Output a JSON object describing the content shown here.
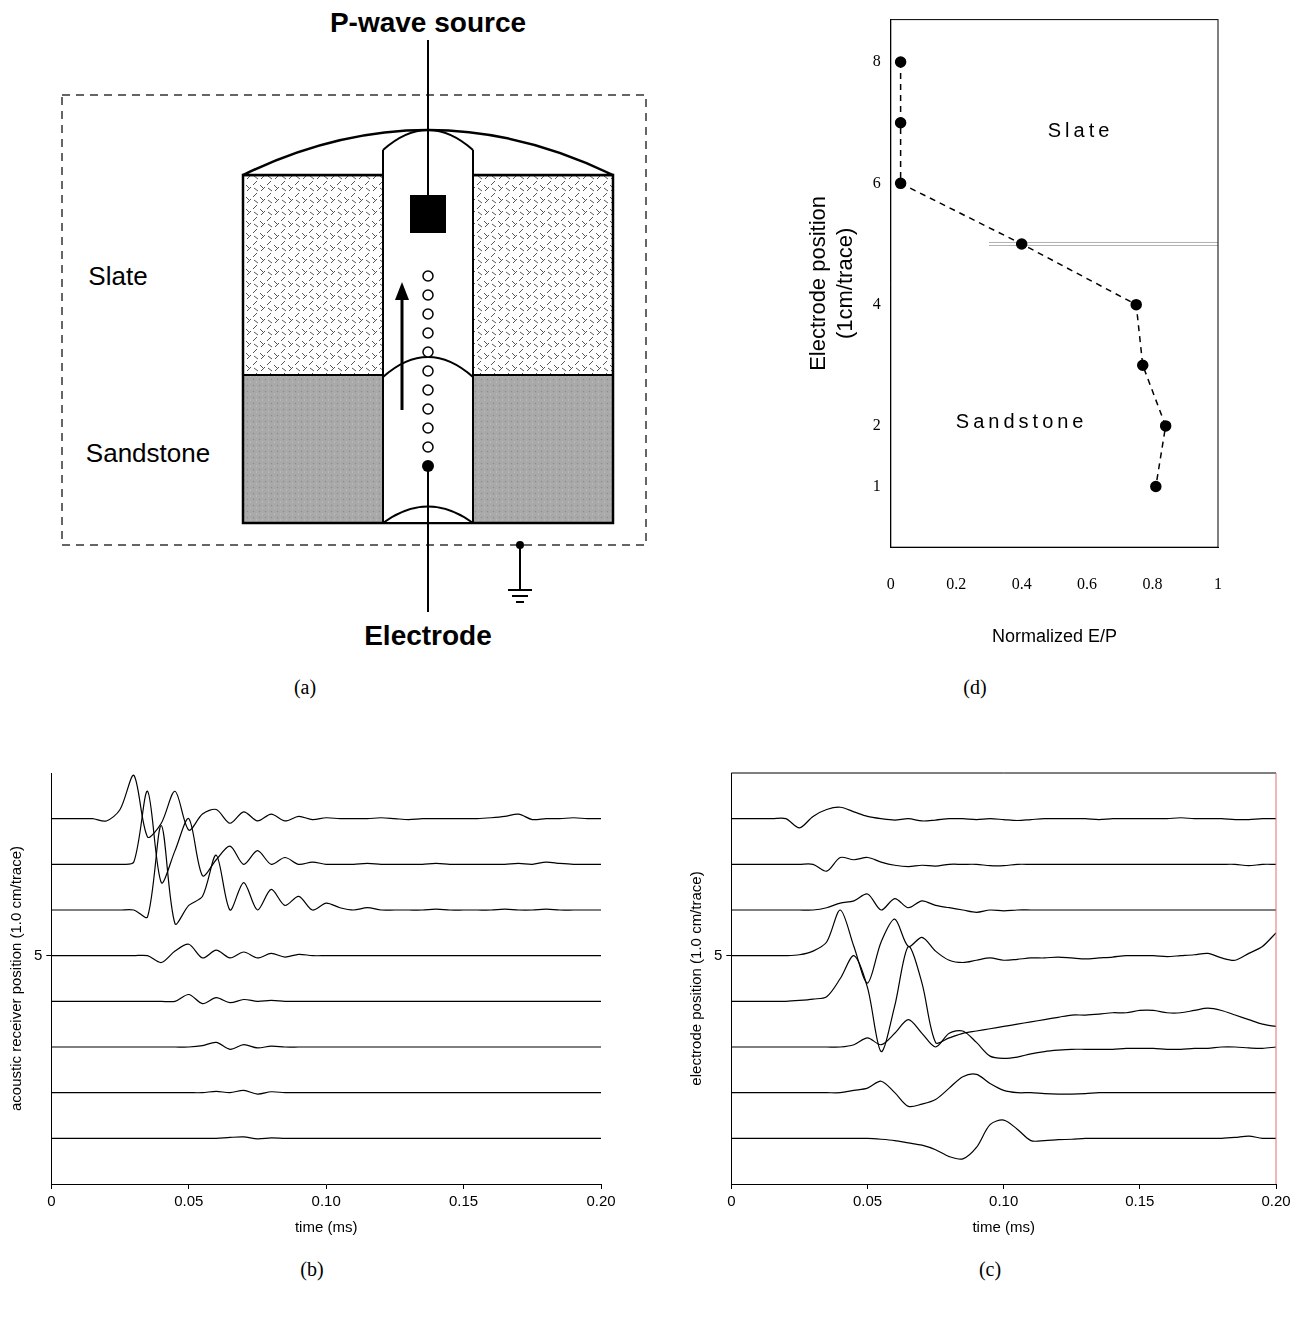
{
  "diagram": {
    "label": "(a)",
    "source": "P-wave source",
    "electrode": "Electrode",
    "layers": [
      "Slate",
      "Sandstone"
    ]
  },
  "chart_data": [
    {
      "label": "(b)",
      "type": "line",
      "color": "#000000",
      "grid": false,
      "x_label": "time (ms)",
      "y_label": "acoustic receiver position (1.0 cm/trace)",
      "xlim": [
        0,
        0.2
      ],
      "ylim": [
        0,
        9
      ],
      "xticks": [
        0,
        0.05,
        {
          "value": 0.1,
          "label": "0.10"
        },
        0.15,
        {
          "value": 0.2,
          "label": "0.20"
        }
      ],
      "yticks": [
        5
      ],
      "x": [
        0,
        0.005,
        0.01,
        0.015,
        0.02,
        0.025,
        0.03,
        0.035,
        0.04,
        0.045,
        0.05,
        0.055,
        0.06,
        0.065,
        0.07,
        0.075,
        0.08,
        0.085,
        0.09,
        0.095,
        0.1,
        0.105,
        0.11,
        0.115,
        0.12,
        0.125,
        0.13,
        0.135,
        0.14,
        0.145,
        0.15,
        0.155,
        0.16,
        0.165,
        0.17,
        0.175,
        0.18,
        0.185,
        0.19,
        0.195,
        0.2
      ],
      "series": [
        {
          "values": [
            8,
            8,
            8,
            8,
            7.95,
            8.2,
            8.95,
            7.6,
            7.9,
            8.6,
            7.75,
            8.1,
            8.2,
            7.9,
            8.15,
            7.95,
            8.1,
            7.95,
            8.05,
            7.98,
            8.02,
            8,
            8,
            8,
            8.02,
            8,
            7.98,
            8,
            8,
            8,
            8,
            8,
            8.02,
            8.05,
            8.1,
            7.98,
            8,
            8,
            8.02,
            8,
            8
          ]
        },
        {
          "values": [
            7,
            7,
            7,
            7,
            7,
            7,
            7.05,
            8.6,
            6.6,
            7.3,
            8,
            6.75,
            7.1,
            7.4,
            7,
            7.3,
            7,
            7.15,
            7,
            7.05,
            7,
            7,
            7,
            7.02,
            7,
            7,
            7,
            7,
            7.02,
            7,
            7,
            7,
            7,
            7,
            7.02,
            7,
            7.05,
            7.02,
            7,
            7,
            7
          ]
        },
        {
          "values": [
            6,
            6,
            6,
            6,
            6,
            6,
            6,
            5.85,
            7.85,
            5.7,
            6.1,
            6.3,
            7.2,
            6,
            6.6,
            6,
            6.45,
            6.1,
            6.3,
            6,
            6.15,
            6.05,
            6,
            6.05,
            6,
            6,
            6,
            6,
            6.02,
            6,
            6,
            6,
            6,
            6.02,
            6,
            6,
            6.02,
            6,
            6,
            6,
            6
          ]
        },
        {
          "values": [
            5,
            5,
            5,
            5,
            5,
            5,
            5,
            5,
            4.85,
            5.1,
            5.25,
            4.95,
            5.12,
            4.95,
            5.08,
            4.95,
            5.05,
            4.97,
            5.03,
            5,
            5,
            5,
            5,
            5,
            5,
            5,
            5,
            5,
            5,
            5,
            5,
            5,
            5,
            5,
            5,
            5,
            5,
            5,
            5,
            5,
            5
          ]
        },
        {
          "values": [
            4,
            4,
            4,
            4,
            4,
            4,
            4,
            4,
            4,
            4,
            4.15,
            3.95,
            4.08,
            3.97,
            4.04,
            4,
            4.02,
            4,
            4,
            4,
            4,
            4,
            4,
            4,
            4,
            4,
            4,
            4,
            4,
            4,
            4,
            4,
            4,
            4,
            4,
            4,
            4,
            4,
            4,
            4,
            4
          ]
        },
        {
          "values": [
            3,
            3,
            3,
            3,
            3,
            3,
            3,
            3,
            3,
            3,
            3,
            3.03,
            3.1,
            2.95,
            3.05,
            2.98,
            3.02,
            3,
            3,
            3,
            3,
            3,
            3,
            3,
            3,
            3,
            3,
            3,
            3,
            3,
            3,
            3,
            3,
            3,
            3,
            3,
            3,
            3,
            3,
            3,
            3
          ]
        },
        {
          "values": [
            2,
            2,
            2,
            2,
            2,
            2,
            2,
            2,
            2,
            2,
            2,
            2,
            2.03,
            2,
            2.05,
            1.97,
            2.02,
            2,
            2,
            2,
            2,
            2,
            2,
            2,
            2,
            2,
            2,
            2,
            2,
            2,
            2,
            2,
            2,
            2,
            2,
            2,
            2,
            2,
            2,
            2,
            2
          ]
        },
        {
          "values": [
            1,
            1,
            1,
            1,
            1,
            1,
            1,
            1,
            1,
            1,
            1,
            1,
            1,
            1.02,
            1.03,
            0.99,
            1.01,
            1,
            1,
            1,
            1,
            1,
            1,
            1,
            1,
            1,
            1,
            1,
            1,
            1,
            1,
            1,
            1,
            1,
            1,
            1,
            1,
            1,
            1,
            1,
            1
          ]
        }
      ]
    },
    {
      "label": "(c)",
      "type": "line",
      "color": "#000000",
      "grid": false,
      "x_label": "time (ms)",
      "y_label": "electrode position (1.0 cm/trace)",
      "xlim": [
        0,
        0.2
      ],
      "ylim": [
        0,
        9
      ],
      "xticks": [
        0,
        0.05,
        {
          "value": 0.1,
          "label": "0.10"
        },
        0.15,
        {
          "value": 0.2,
          "label": "0.20"
        }
      ],
      "yticks": [
        5
      ],
      "x": [
        0,
        0.005,
        0.01,
        0.015,
        0.02,
        0.025,
        0.03,
        0.035,
        0.04,
        0.045,
        0.05,
        0.055,
        0.06,
        0.065,
        0.07,
        0.075,
        0.08,
        0.085,
        0.09,
        0.095,
        0.1,
        0.105,
        0.11,
        0.115,
        0.12,
        0.125,
        0.13,
        0.135,
        0.14,
        0.145,
        0.15,
        0.155,
        0.16,
        0.165,
        0.17,
        0.175,
        0.18,
        0.185,
        0.19,
        0.195,
        0.2
      ],
      "series": [
        {
          "values": [
            8,
            8,
            8,
            8,
            8,
            7.8,
            8.05,
            8.2,
            8.25,
            8.15,
            8.05,
            8,
            7.97,
            8,
            7.95,
            7.97,
            8,
            8,
            7.98,
            8,
            7.98,
            7.96,
            7.98,
            8,
            8,
            8,
            8,
            7.98,
            8,
            8,
            8,
            8,
            8,
            8.02,
            8,
            8,
            8,
            7.98,
            7.98,
            8,
            8
          ]
        },
        {
          "values": [
            7,
            7,
            7,
            7,
            7,
            7,
            7,
            6.85,
            7.15,
            7.1,
            7.15,
            7.05,
            6.98,
            6.95,
            6.98,
            6.96,
            7,
            7,
            7,
            6.97,
            6.97,
            7,
            7,
            7,
            7,
            7,
            7,
            7,
            7,
            7,
            7,
            7,
            7,
            7,
            7,
            7,
            7,
            7,
            6.97,
            7,
            7
          ]
        },
        {
          "values": [
            6,
            6,
            6,
            6,
            6,
            6,
            6,
            6.05,
            6.15,
            6.2,
            6.35,
            6,
            6.25,
            6.05,
            6.2,
            6.1,
            6.05,
            6,
            5.95,
            6,
            5.98,
            6,
            6,
            6,
            6,
            6,
            6,
            6,
            6,
            6,
            6,
            6,
            6,
            6,
            6,
            6,
            6,
            6,
            6,
            6,
            6
          ]
        },
        {
          "values": [
            5,
            5,
            5,
            5,
            5,
            5.02,
            5.1,
            5.3,
            6,
            5.2,
            4.4,
            5.3,
            5.8,
            5.2,
            5.4,
            5.1,
            4.9,
            4.85,
            4.9,
            4.95,
            4.9,
            4.92,
            4.95,
            4.95,
            4.97,
            4.95,
            4.93,
            4.95,
            4.97,
            5,
            5,
            5,
            4.98,
            5,
            5.02,
            5.05,
            4.95,
            4.9,
            5.05,
            5.2,
            5.5
          ]
        },
        {
          "values": [
            4,
            4,
            4,
            4,
            4,
            4.02,
            4.05,
            4.1,
            4.5,
            5,
            4.3,
            2.9,
            3.9,
            5.2,
            4.4,
            3.1,
            3.2,
            3.3,
            3.35,
            3.4,
            3.45,
            3.5,
            3.55,
            3.6,
            3.65,
            3.7,
            3.7,
            3.72,
            3.75,
            3.75,
            3.8,
            3.8,
            3.75,
            3.75,
            3.8,
            3.85,
            3.8,
            3.7,
            3.6,
            3.5,
            3.45
          ]
        },
        {
          "values": [
            3,
            3,
            3,
            3,
            3,
            3,
            3,
            3,
            3,
            3.05,
            3.2,
            3.05,
            3.3,
            3.6,
            3.3,
            3,
            3.3,
            3.35,
            3.1,
            2.8,
            2.75,
            2.78,
            2.85,
            2.9,
            2.93,
            2.95,
            2.95,
            2.95,
            2.95,
            2.97,
            2.97,
            2.97,
            2.95,
            2.95,
            2.97,
            2.97,
            3,
            3,
            2.98,
            2.97,
            3
          ]
        },
        {
          "values": [
            2,
            2,
            2,
            2,
            2,
            2,
            2,
            2,
            2,
            2.05,
            2.1,
            2.25,
            2,
            1.7,
            1.75,
            1.85,
            2.1,
            2.35,
            2.4,
            2.2,
            2.05,
            2,
            2,
            1.98,
            1.97,
            1.97,
            1.98,
            2,
            2,
            2,
            2,
            2,
            2,
            2,
            2,
            2,
            2,
            2,
            2,
            2,
            2
          ]
        },
        {
          "values": [
            1,
            1,
            1,
            1,
            1,
            1,
            1,
            1,
            1,
            1,
            1,
            0.98,
            0.95,
            0.9,
            0.85,
            0.75,
            0.6,
            0.55,
            0.8,
            1.3,
            1.4,
            1.2,
            0.95,
            0.95,
            0.97,
            0.98,
            1,
            1,
            1,
            1,
            1,
            1,
            1,
            1,
            1,
            1,
            1,
            1.02,
            1.05,
            1,
            1
          ]
        }
      ]
    },
    {
      "label": "(d)",
      "type": "scatter",
      "color": "#000000",
      "marker": "circle",
      "line_style": "dashed",
      "grid": false,
      "x_label": "Normalized E/P",
      "y_label": "Electrode position (1cm/trace)",
      "xlim": [
        0,
        1
      ],
      "ylim": [
        0,
        8.7
      ],
      "xticks": [
        0,
        0.2,
        0.4,
        0.6,
        0.8,
        1
      ],
      "yticks": [
        1,
        2,
        4,
        6,
        8
      ],
      "x": [
        0.03,
        0.03,
        0.03,
        0.4,
        0.75,
        0.77,
        0.84,
        0.81
      ],
      "values": [
        8,
        7,
        6,
        5,
        4,
        3,
        2,
        1
      ],
      "reference_line": {
        "y": 5,
        "x": [
          0.3,
          1
        ]
      },
      "annotations": [
        {
          "text": "Slate",
          "x": 0.58,
          "y": 6.85
        },
        {
          "text": "Sandstone",
          "x": 0.4,
          "y": 2.05
        }
      ]
    }
  ]
}
